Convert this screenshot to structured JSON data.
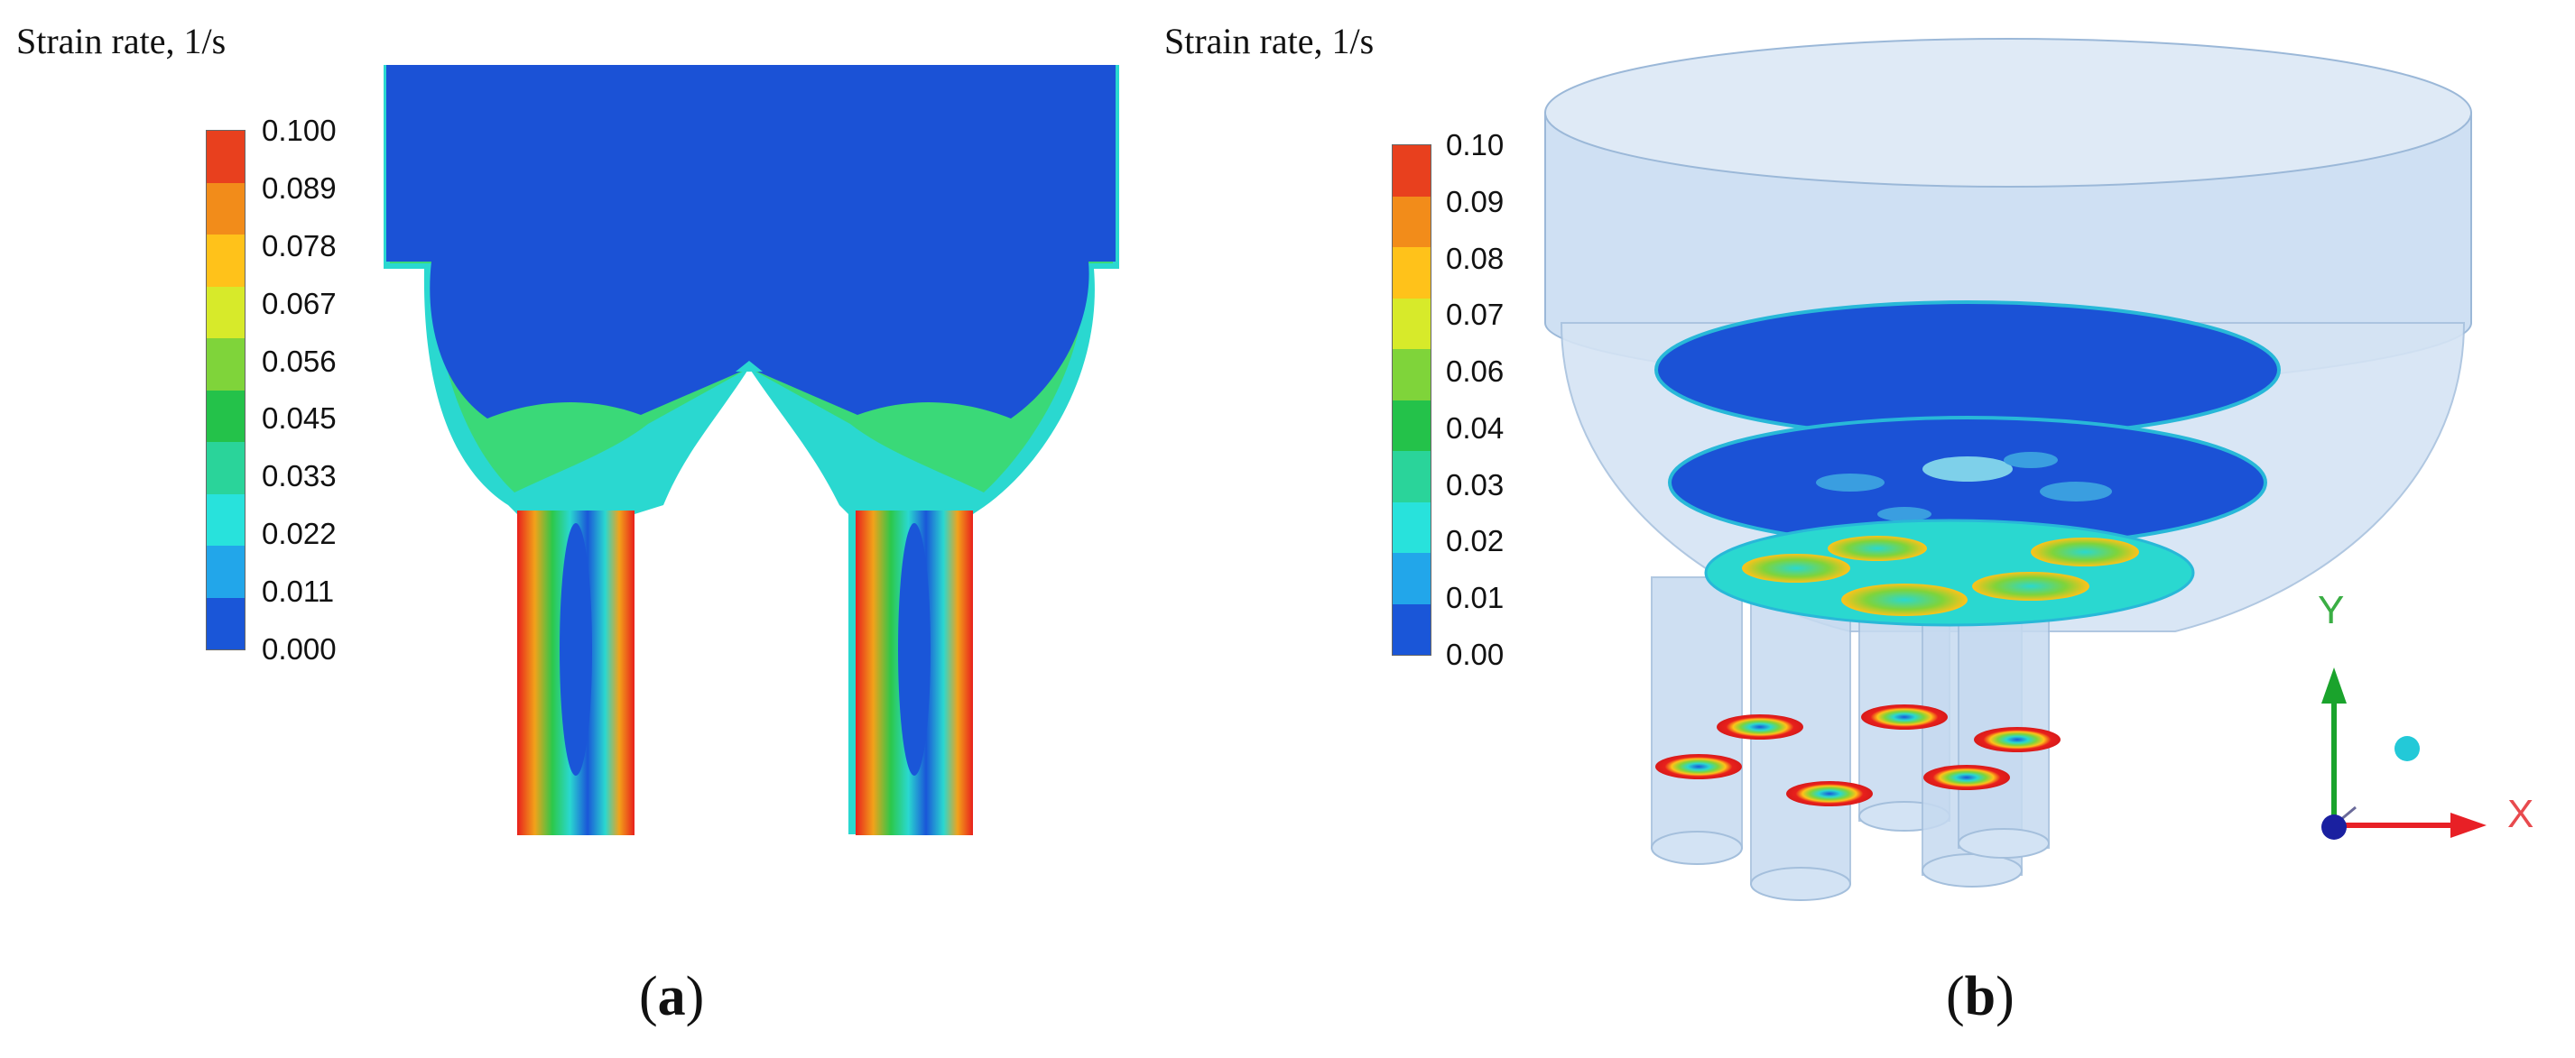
{
  "panel_a": {
    "scale_title": "Strain rate, 1/s",
    "ticks": [
      "0.100",
      "0.089",
      "0.078",
      "0.067",
      "0.056",
      "0.045",
      "0.033",
      "0.022",
      "0.011",
      "0.000"
    ],
    "caption_letter": "a"
  },
  "panel_b": {
    "scale_title": "Strain rate, 1/s",
    "ticks": [
      "0.10",
      "0.09",
      "0.08",
      "0.07",
      "0.06",
      "0.04",
      "0.03",
      "0.02",
      "0.01",
      "0.00"
    ],
    "caption_letter": "b",
    "triad": {
      "y": "Y",
      "x": "X"
    }
  },
  "colormap": [
    "#e8401e",
    "#f28c1a",
    "#ffc21a",
    "#d7ea2a",
    "#7fd43a",
    "#24c24a",
    "#2ad49a",
    "#28e2dc",
    "#22a6ea",
    "#1a56d8"
  ],
  "colors": {
    "field_blue": "#1b52d6",
    "hot_red": "#e8201c",
    "shell": "#c9ddf2",
    "triad_y": "#1aa32c",
    "triad_x": "#e82026",
    "triad_z": "#1a20a0",
    "cyan_marker": "#23c9d8"
  }
}
